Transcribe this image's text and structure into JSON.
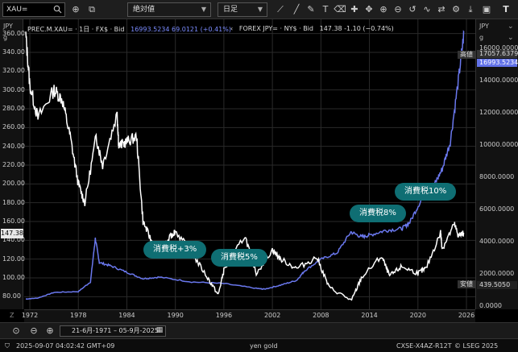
{
  "toolbar": {
    "symbol_value": "XAU=",
    "scale_mode": "絶対値",
    "interval": "日足"
  },
  "legend": {
    "series1_name": "PREC.M.XAU= · 1日 · FX$ · Bid",
    "series1_values": "16993.5234  69.0121 (+0.41%)",
    "series2_name": "FOREX JPY= · NY$ · Bid",
    "series2_values": "147.38  -1.10 (−0.74%)"
  },
  "left_axis": {
    "title": "JPY",
    "subtitle": "g",
    "ticks": [
      "360.00",
      "340.00",
      "320.00",
      "300.00",
      "280.00",
      "260.00",
      "240.00",
      "220.00",
      "200.00",
      "180.00",
      "160.00",
      "140.00",
      "120.00",
      "100.00",
      "80.00"
    ],
    "current_price": "147.38"
  },
  "right_axis": {
    "title": "JPY",
    "subtitle": "g",
    "ticks": [
      "16000.0000",
      "14000.0000",
      "12000.0000",
      "10000.0000",
      "8000.0000",
      "6000.0000",
      "4000.0000",
      "2000.0000",
      "0.0000"
    ],
    "high_value": "17057.6379",
    "last_value": "16993.5234",
    "low_value": "439.5050",
    "high_label": "高値",
    "low_label": "安値"
  },
  "annotations": [
    "消費税+3%",
    "消費税5%",
    "消費税8%",
    "消費税10%"
  ],
  "xaxis_ticks": [
    "1972",
    "1978",
    "1984",
    "1990",
    "1996",
    "2002",
    "2008",
    "2014",
    "2020",
    "2026"
  ],
  "range": {
    "text": "21-6月-1971  –  05-9月-2025"
  },
  "status": {
    "timestamp": "2025-09-07 04:02:42 GMT+09",
    "center": "yen gold",
    "code": "CXSE-X4AZ-R12T",
    "copyright": "© LSEG 2025"
  },
  "colors": {
    "gold_series": "#6a78ee",
    "fx_series": "#ffffff",
    "bubble": "#0f6e73"
  },
  "chart_data": {
    "type": "line",
    "x_range": [
      1971.5,
      2025.7
    ],
    "series": [
      {
        "name": "PREC.M.XAU= · 1日 · FX$ · Bid",
        "axis": "right",
        "x": [
          1971.5,
          1973,
          1975,
          1978,
          1979.5,
          1980.1,
          1980.6,
          1982,
          1984,
          1986,
          1988,
          1992,
          1996,
          2000,
          2001,
          2003,
          2005,
          2006,
          2008,
          2010,
          2011.7,
          2013,
          2014,
          2016,
          2018,
          2019,
          2020.6,
          2022,
          2023,
          2024,
          2025,
          2025.7
        ],
        "y": [
          440,
          500,
          850,
          900,
          1500,
          4200,
          2700,
          2500,
          2100,
          1700,
          1800,
          1500,
          1400,
          1100,
          1050,
          1300,
          1600,
          2200,
          2900,
          3300,
          4600,
          4300,
          4400,
          4700,
          4800,
          5200,
          6800,
          7500,
          8500,
          10200,
          14000,
          16993.5
        ]
      },
      {
        "name": "FOREX JPY= · NY$ · Bid",
        "axis": "left",
        "x": [
          1971.5,
          1972,
          1973,
          1975,
          1976,
          1977,
          1978,
          1978.8,
          1980.2,
          1981,
          1982.8,
          1983,
          1984,
          1985.2,
          1986,
          1987,
          1988,
          1989.5,
          1990,
          1992,
          1994,
          1995.3,
          1996,
          1998.6,
          2000,
          2002,
          2003,
          2005,
          2007.5,
          2009,
          2011.8,
          2013,
          2015.5,
          2016.5,
          2018,
          2020,
          2021,
          2022.8,
          2023,
          2024.5,
          2025,
          2025.7
        ],
        "y": [
          358,
          305,
          270,
          300,
          290,
          250,
          200,
          180,
          250,
          220,
          275,
          240,
          245,
          250,
          160,
          140,
          125,
          145,
          150,
          127,
          100,
          82,
          108,
          145,
          105,
          130,
          120,
          110,
          122,
          90,
          76,
          100,
          123,
          102,
          112,
          105,
          110,
          148,
          131,
          157,
          145,
          147.38
        ]
      }
    ],
    "left_ylim": [
      70,
      370
    ],
    "right_ylim": [
      0,
      17500
    ],
    "grid": true
  }
}
